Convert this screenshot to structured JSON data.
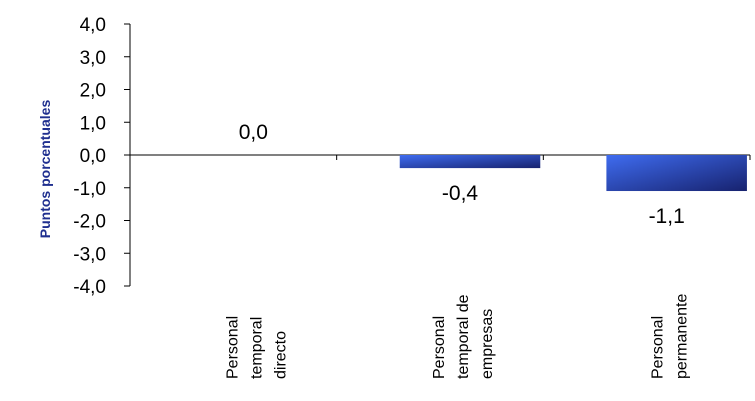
{
  "chart_data": {
    "type": "bar",
    "title": "",
    "xlabel": "",
    "ylabel": "Puntos porcentuales",
    "ylim": [
      -4.0,
      4.0
    ],
    "yticks": [
      "4,0",
      "3,0",
      "2,0",
      "1,0",
      "0,0",
      "-1,0",
      "-2,0",
      "-3,0",
      "-4,0"
    ],
    "ytick_values": [
      4,
      3,
      2,
      1,
      0,
      -1,
      -2,
      -3,
      -4
    ],
    "categories": [
      [
        "Personal",
        "temporal",
        "directo"
      ],
      [
        "Personal",
        "temporal de",
        "empresas"
      ],
      [
        "Personal",
        "permanente"
      ]
    ],
    "values": [
      0.0,
      -0.4,
      -1.1
    ],
    "data_labels": [
      "0,0",
      "-0,4",
      "-1,1"
    ],
    "grid": false,
    "legend": "none",
    "colors": {
      "bar_light": "#3f6cf0",
      "bar_dark": "#17226e",
      "ylabel": "#1f2f8f",
      "axis": "#000000"
    }
  }
}
